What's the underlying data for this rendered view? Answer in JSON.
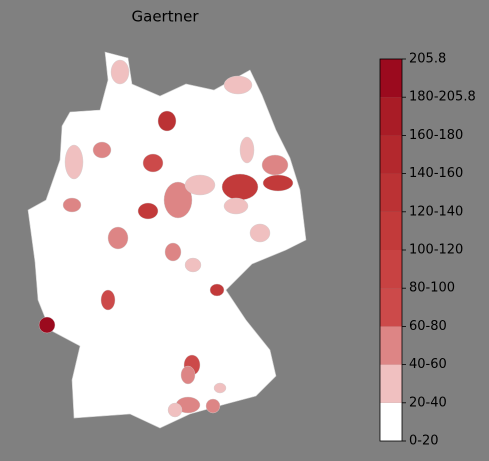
{
  "title": "Gaertner",
  "colorbar": {
    "labels": [
      "0-20",
      "20-40",
      "40-60",
      "60-80",
      "80-100",
      "100-120",
      "120-140",
      "140-160",
      "160-180",
      "180-205.8",
      "205.8"
    ],
    "colors": [
      "#ffffff",
      "#f0c0c0",
      "#dd8585",
      "#cc4a4a",
      "#c84242",
      "#c23a3a",
      "#bb3234",
      "#b3282d",
      "#a91c26",
      "#9b0a1e"
    ]
  }
}
